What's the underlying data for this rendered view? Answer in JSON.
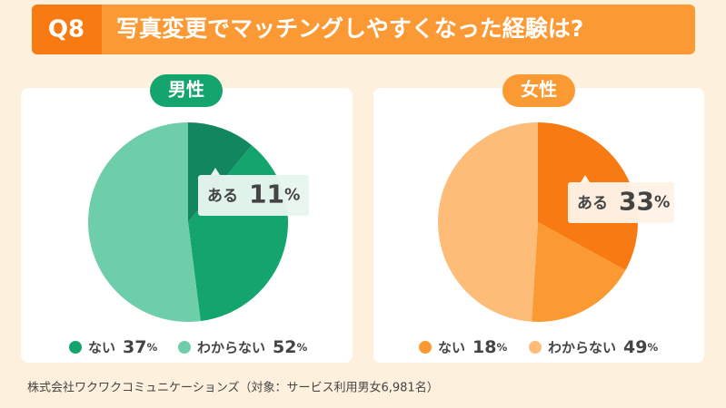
{
  "header": {
    "badge": "Q8",
    "title": "写真変更でマッチングしやすくなった経験は?"
  },
  "chart_data": [
    {
      "type": "pie",
      "title": "男性",
      "categories": [
        "ある",
        "ない",
        "わからない"
      ],
      "values": [
        11,
        37,
        52
      ],
      "value_labels": [
        "11%",
        "37%",
        "52%"
      ],
      "colors": [
        "#12875f",
        "#14a46e",
        "#6ecea9"
      ]
    },
    {
      "type": "pie",
      "title": "女性",
      "categories": [
        "ある",
        "ない",
        "わからない"
      ],
      "values": [
        33,
        18,
        49
      ],
      "value_labels": [
        "33%",
        "18%",
        "49%"
      ],
      "colors": [
        "#f77b12",
        "#fb9a33",
        "#fdbc78"
      ]
    }
  ],
  "source": "株式会社ワクワクコミュニケーションズ（対象：サービス利用男女6,981名）"
}
